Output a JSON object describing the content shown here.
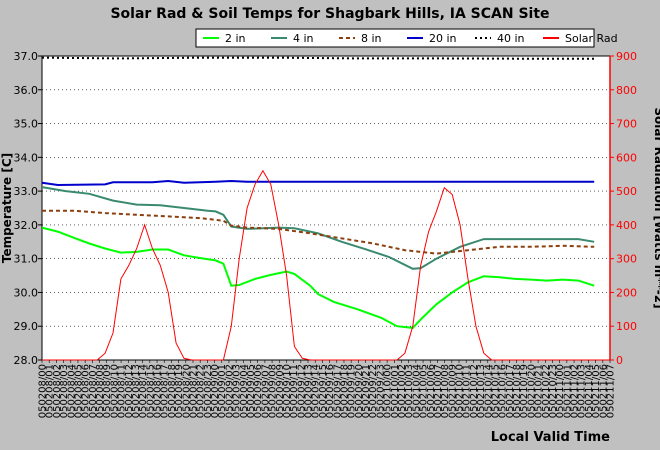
{
  "chart_data": {
    "type": "line",
    "title": "Solar Rad & Soil Temps for Shagbark Hills, IA SCAN Site",
    "xlabel": "Local Valid Time",
    "ylabel_left": "Temperature [C]",
    "ylabel_right": "Solar Radiation [Watts m**-2]",
    "ylim_left": [
      28.0,
      37.0
    ],
    "ylim_right": [
      0,
      900
    ],
    "yticks_left": [
      "28.0",
      "29.0",
      "30.0",
      "31.0",
      "32.0",
      "33.0",
      "34.0",
      "35.0",
      "36.0",
      "37.0"
    ],
    "yticks_right": [
      "0",
      "100",
      "200",
      "300",
      "400",
      "500",
      "600",
      "700",
      "800",
      "900"
    ],
    "xlim": [
      0,
      72
    ],
    "xticks": [
      "050208/00",
      "050208/01",
      "050208/02",
      "050208/03",
      "050208/04",
      "050208/05",
      "050208/06",
      "050208/07",
      "050208/08",
      "050208/09",
      "050208/10",
      "050208/11",
      "050208/12",
      "050208/13",
      "050208/14",
      "050208/15",
      "050208/16",
      "050208/17",
      "050208/18",
      "050208/19",
      "050208/20",
      "050208/21",
      "050208/22",
      "050208/23",
      "050209/00",
      "050209/01",
      "050209/02",
      "050209/03",
      "050209/04",
      "050209/05",
      "050209/06",
      "050209/07",
      "050209/08",
      "050209/09",
      "050209/10",
      "050209/11",
      "050209/12",
      "050209/13",
      "050209/14",
      "050209/15",
      "050209/16",
      "050209/17",
      "050209/18",
      "050209/19",
      "050209/20",
      "050209/21",
      "050209/22",
      "050209/23",
      "050210/00",
      "050210/01",
      "050210/02",
      "050210/03",
      "050210/04",
      "050210/05",
      "050210/06",
      "050210/07",
      "050210/08",
      "050210/09",
      "050210/10",
      "050210/11",
      "050210/12",
      "050210/13",
      "050210/14",
      "050210/15",
      "050210/16",
      "050210/17",
      "050210/18",
      "050210/19",
      "050210/20",
      "050210/21",
      "050210/22",
      "050210/23",
      "050211/00",
      "050211/01",
      "050211/02",
      "050211/03",
      "050211/04",
      "050211/05",
      "050211/06",
      "050211/07"
    ],
    "grid": true,
    "legend_placement": "top",
    "series": [
      {
        "name": "2 in",
        "axis": "left",
        "color": "#00ff00",
        "style": "solid",
        "points": [
          [
            0,
            31.92
          ],
          [
            2,
            31.8
          ],
          [
            4,
            31.62
          ],
          [
            6,
            31.45
          ],
          [
            8,
            31.3
          ],
          [
            10,
            31.18
          ],
          [
            12,
            31.2
          ],
          [
            14,
            31.27
          ],
          [
            16,
            31.27
          ],
          [
            18,
            31.1
          ],
          [
            20,
            31.02
          ],
          [
            22,
            30.95
          ],
          [
            23,
            30.85
          ],
          [
            24,
            30.2
          ],
          [
            25,
            30.22
          ],
          [
            27,
            30.4
          ],
          [
            29,
            30.52
          ],
          [
            31,
            30.62
          ],
          [
            32,
            30.55
          ],
          [
            34,
            30.2
          ],
          [
            35,
            29.95
          ],
          [
            37,
            29.72
          ],
          [
            40,
            29.5
          ],
          [
            43,
            29.25
          ],
          [
            45,
            29.0
          ],
          [
            47,
            28.95
          ],
          [
            48,
            29.2
          ],
          [
            50,
            29.65
          ],
          [
            52,
            30.0
          ],
          [
            54,
            30.3
          ],
          [
            56,
            30.48
          ],
          [
            58,
            30.45
          ],
          [
            60,
            30.4
          ],
          [
            62,
            30.38
          ],
          [
            64,
            30.35
          ],
          [
            66,
            30.38
          ],
          [
            68,
            30.35
          ],
          [
            70,
            30.2
          ]
        ]
      },
      {
        "name": "4 in",
        "axis": "left",
        "color": "#3a8a70",
        "style": "solid",
        "points": [
          [
            0,
            33.12
          ],
          [
            3,
            33.0
          ],
          [
            6,
            32.92
          ],
          [
            9,
            32.72
          ],
          [
            12,
            32.6
          ],
          [
            15,
            32.58
          ],
          [
            18,
            32.5
          ],
          [
            21,
            32.42
          ],
          [
            22,
            32.4
          ],
          [
            23,
            32.3
          ],
          [
            24,
            31.95
          ],
          [
            26,
            31.88
          ],
          [
            28,
            31.9
          ],
          [
            30,
            31.92
          ],
          [
            32,
            31.9
          ],
          [
            35,
            31.75
          ],
          [
            38,
            31.5
          ],
          [
            41,
            31.28
          ],
          [
            44,
            31.05
          ],
          [
            47,
            30.7
          ],
          [
            48,
            30.72
          ],
          [
            50,
            31.0
          ],
          [
            53,
            31.35
          ],
          [
            56,
            31.58
          ],
          [
            60,
            31.58
          ],
          [
            64,
            31.58
          ],
          [
            68,
            31.58
          ],
          [
            70,
            31.5
          ]
        ]
      },
      {
        "name": "8 in",
        "axis": "left",
        "color": "#8b4010",
        "style": "dashed",
        "points": [
          [
            0,
            32.42
          ],
          [
            4,
            32.42
          ],
          [
            8,
            32.35
          ],
          [
            12,
            32.3
          ],
          [
            16,
            32.25
          ],
          [
            20,
            32.2
          ],
          [
            22,
            32.15
          ],
          [
            23,
            32.12
          ],
          [
            24,
            31.98
          ],
          [
            26,
            31.92
          ],
          [
            30,
            31.88
          ],
          [
            34,
            31.75
          ],
          [
            38,
            31.6
          ],
          [
            42,
            31.45
          ],
          [
            46,
            31.25
          ],
          [
            50,
            31.15
          ],
          [
            54,
            31.25
          ],
          [
            58,
            31.35
          ],
          [
            62,
            31.35
          ],
          [
            66,
            31.38
          ],
          [
            70,
            31.35
          ]
        ]
      },
      {
        "name": "20 in",
        "axis": "left",
        "color": "#0000cc",
        "style": "solid",
        "points": [
          [
            0,
            33.25
          ],
          [
            2,
            33.18
          ],
          [
            8,
            33.2
          ],
          [
            9,
            33.26
          ],
          [
            14,
            33.26
          ],
          [
            16,
            33.3
          ],
          [
            18,
            33.25
          ],
          [
            22,
            33.28
          ],
          [
            24,
            33.3
          ],
          [
            26,
            33.28
          ],
          [
            30,
            33.28
          ],
          [
            40,
            33.28
          ],
          [
            50,
            33.28
          ],
          [
            60,
            33.28
          ],
          [
            70,
            33.28
          ]
        ]
      },
      {
        "name": "40 in",
        "axis": "left",
        "color": "#000000",
        "style": "dotted",
        "points": [
          [
            0,
            36.95
          ],
          [
            10,
            36.93
          ],
          [
            20,
            36.95
          ],
          [
            30,
            36.95
          ],
          [
            40,
            36.93
          ],
          [
            50,
            36.93
          ],
          [
            60,
            36.92
          ],
          [
            70,
            36.92
          ]
        ]
      },
      {
        "name": "Solar Rad",
        "axis": "right",
        "color": "#ff0000",
        "style": "solid",
        "points": [
          [
            0,
            0
          ],
          [
            7,
            0
          ],
          [
            8,
            20
          ],
          [
            9,
            80
          ],
          [
            10,
            240
          ],
          [
            11,
            280
          ],
          [
            12,
            330
          ],
          [
            13,
            400
          ],
          [
            14,
            330
          ],
          [
            15,
            280
          ],
          [
            16,
            200
          ],
          [
            17,
            50
          ],
          [
            18,
            5
          ],
          [
            19,
            0
          ],
          [
            23,
            0
          ],
          [
            24,
            100
          ],
          [
            25,
            300
          ],
          [
            26,
            450
          ],
          [
            27,
            520
          ],
          [
            28,
            560
          ],
          [
            29,
            520
          ],
          [
            30,
            400
          ],
          [
            31,
            250
          ],
          [
            32,
            40
          ],
          [
            33,
            5
          ],
          [
            34,
            0
          ],
          [
            45,
            0
          ],
          [
            46,
            20
          ],
          [
            47,
            100
          ],
          [
            48,
            280
          ],
          [
            49,
            380
          ],
          [
            50,
            440
          ],
          [
            51,
            510
          ],
          [
            52,
            490
          ],
          [
            53,
            400
          ],
          [
            54,
            240
          ],
          [
            55,
            100
          ],
          [
            56,
            20
          ],
          [
            57,
            0
          ],
          [
            72,
            0
          ]
        ]
      }
    ]
  }
}
